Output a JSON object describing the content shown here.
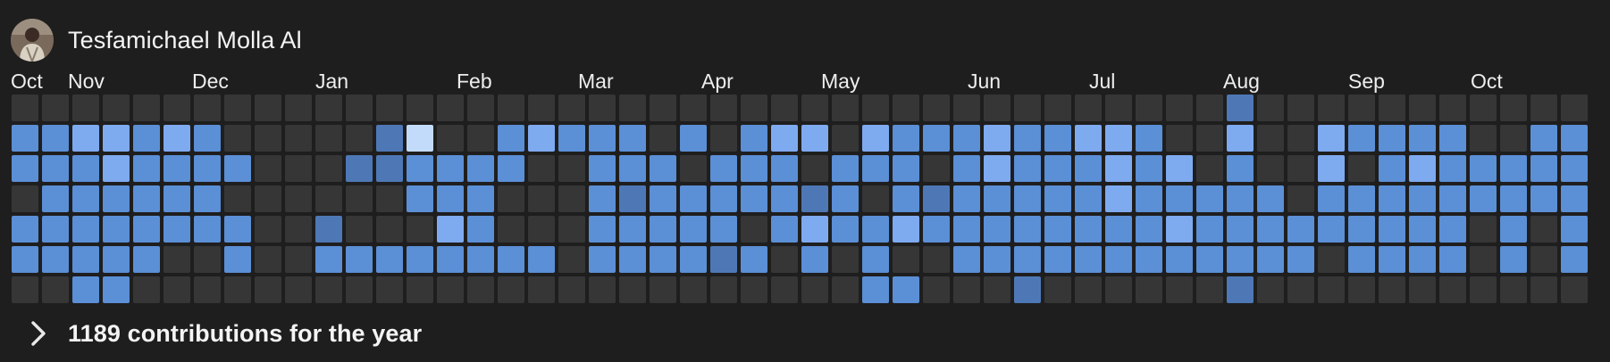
{
  "profile": {
    "name": "Tesfamichael Molla Al",
    "avatar_icon": "user-avatar"
  },
  "months": [
    "Oct",
    "Nov",
    "Dec",
    "Jan",
    "Feb",
    "Mar",
    "Apr",
    "May",
    "Jun",
    "Jul",
    "Aug",
    "Sep",
    "Oct"
  ],
  "summary": {
    "text": "1189 contributions for the year",
    "expand_icon": "chevron-right-icon"
  },
  "colors": {
    "background": "#1f1e1e",
    "empty": "#363636",
    "level1": "#4e78b5",
    "level2": "#5b8fd6",
    "level3": "#7eaaf0",
    "level4": "#c3dbfb"
  },
  "contributions": {
    "rows": [
      "0000000000000000000000000000000000000000100000000000",
      "2233232000001400232220202330322232233200300322220022",
      "2223222200011222200222022202220232223230200302322222",
      "0222222000000222000212222212021222223222220222222222",
      "2222222200100032000222220232232222222232222222220202",
      "2222200200222222220222212020200222222222222022220202",
      "0022000000000000000000000000220001000000100000000000"
    ]
  }
}
